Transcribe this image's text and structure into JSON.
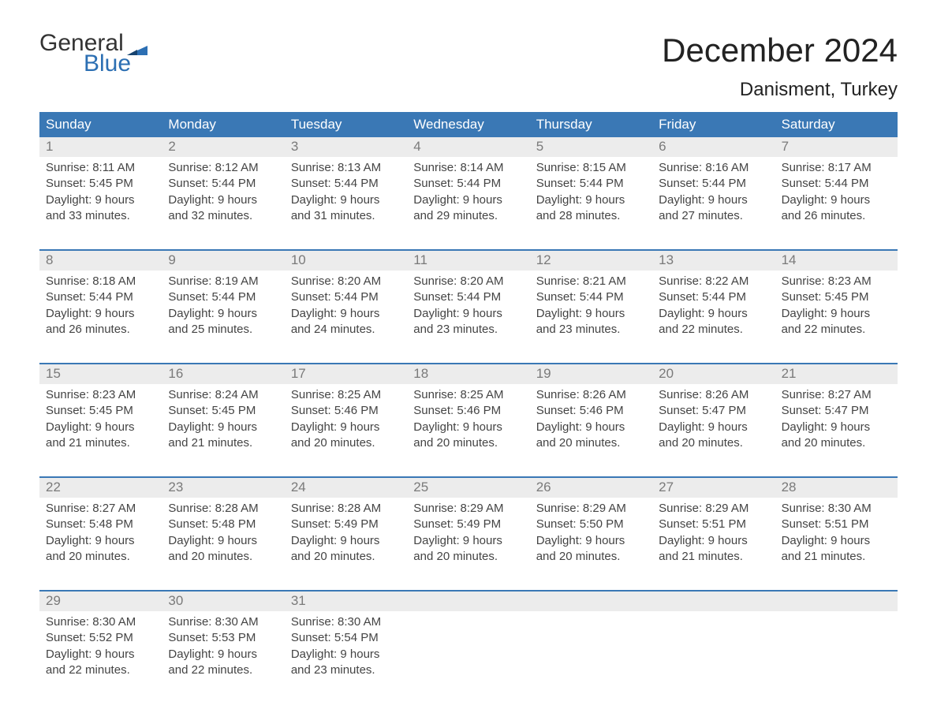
{
  "logo": {
    "general": "General",
    "blue": "Blue"
  },
  "title": "December 2024",
  "location": "Danisment, Turkey",
  "colors": {
    "header_bg": "#3a78b5",
    "header_text": "#ffffff",
    "daynum_bg": "#ececec",
    "daynum_text": "#7a7a7a",
    "body_text": "#444444",
    "logo_blue": "#2c6fb3",
    "border": "#3a78b5"
  },
  "weekdays": [
    "Sunday",
    "Monday",
    "Tuesday",
    "Wednesday",
    "Thursday",
    "Friday",
    "Saturday"
  ],
  "labels": {
    "sunrise": "Sunrise:",
    "sunset": "Sunset:",
    "daylight": "Daylight:"
  },
  "weeks": [
    [
      {
        "n": "1",
        "sunrise": "8:11 AM",
        "sunset": "5:45 PM",
        "daylight1": "9 hours",
        "daylight2": "and 33 minutes."
      },
      {
        "n": "2",
        "sunrise": "8:12 AM",
        "sunset": "5:44 PM",
        "daylight1": "9 hours",
        "daylight2": "and 32 minutes."
      },
      {
        "n": "3",
        "sunrise": "8:13 AM",
        "sunset": "5:44 PM",
        "daylight1": "9 hours",
        "daylight2": "and 31 minutes."
      },
      {
        "n": "4",
        "sunrise": "8:14 AM",
        "sunset": "5:44 PM",
        "daylight1": "9 hours",
        "daylight2": "and 29 minutes."
      },
      {
        "n": "5",
        "sunrise": "8:15 AM",
        "sunset": "5:44 PM",
        "daylight1": "9 hours",
        "daylight2": "and 28 minutes."
      },
      {
        "n": "6",
        "sunrise": "8:16 AM",
        "sunset": "5:44 PM",
        "daylight1": "9 hours",
        "daylight2": "and 27 minutes."
      },
      {
        "n": "7",
        "sunrise": "8:17 AM",
        "sunset": "5:44 PM",
        "daylight1": "9 hours",
        "daylight2": "and 26 minutes."
      }
    ],
    [
      {
        "n": "8",
        "sunrise": "8:18 AM",
        "sunset": "5:44 PM",
        "daylight1": "9 hours",
        "daylight2": "and 26 minutes."
      },
      {
        "n": "9",
        "sunrise": "8:19 AM",
        "sunset": "5:44 PM",
        "daylight1": "9 hours",
        "daylight2": "and 25 minutes."
      },
      {
        "n": "10",
        "sunrise": "8:20 AM",
        "sunset": "5:44 PM",
        "daylight1": "9 hours",
        "daylight2": "and 24 minutes."
      },
      {
        "n": "11",
        "sunrise": "8:20 AM",
        "sunset": "5:44 PM",
        "daylight1": "9 hours",
        "daylight2": "and 23 minutes."
      },
      {
        "n": "12",
        "sunrise": "8:21 AM",
        "sunset": "5:44 PM",
        "daylight1": "9 hours",
        "daylight2": "and 23 minutes."
      },
      {
        "n": "13",
        "sunrise": "8:22 AM",
        "sunset": "5:44 PM",
        "daylight1": "9 hours",
        "daylight2": "and 22 minutes."
      },
      {
        "n": "14",
        "sunrise": "8:23 AM",
        "sunset": "5:45 PM",
        "daylight1": "9 hours",
        "daylight2": "and 22 minutes."
      }
    ],
    [
      {
        "n": "15",
        "sunrise": "8:23 AM",
        "sunset": "5:45 PM",
        "daylight1": "9 hours",
        "daylight2": "and 21 minutes."
      },
      {
        "n": "16",
        "sunrise": "8:24 AM",
        "sunset": "5:45 PM",
        "daylight1": "9 hours",
        "daylight2": "and 21 minutes."
      },
      {
        "n": "17",
        "sunrise": "8:25 AM",
        "sunset": "5:46 PM",
        "daylight1": "9 hours",
        "daylight2": "and 20 minutes."
      },
      {
        "n": "18",
        "sunrise": "8:25 AM",
        "sunset": "5:46 PM",
        "daylight1": "9 hours",
        "daylight2": "and 20 minutes."
      },
      {
        "n": "19",
        "sunrise": "8:26 AM",
        "sunset": "5:46 PM",
        "daylight1": "9 hours",
        "daylight2": "and 20 minutes."
      },
      {
        "n": "20",
        "sunrise": "8:26 AM",
        "sunset": "5:47 PM",
        "daylight1": "9 hours",
        "daylight2": "and 20 minutes."
      },
      {
        "n": "21",
        "sunrise": "8:27 AM",
        "sunset": "5:47 PM",
        "daylight1": "9 hours",
        "daylight2": "and 20 minutes."
      }
    ],
    [
      {
        "n": "22",
        "sunrise": "8:27 AM",
        "sunset": "5:48 PM",
        "daylight1": "9 hours",
        "daylight2": "and 20 minutes."
      },
      {
        "n": "23",
        "sunrise": "8:28 AM",
        "sunset": "5:48 PM",
        "daylight1": "9 hours",
        "daylight2": "and 20 minutes."
      },
      {
        "n": "24",
        "sunrise": "8:28 AM",
        "sunset": "5:49 PM",
        "daylight1": "9 hours",
        "daylight2": "and 20 minutes."
      },
      {
        "n": "25",
        "sunrise": "8:29 AM",
        "sunset": "5:49 PM",
        "daylight1": "9 hours",
        "daylight2": "and 20 minutes."
      },
      {
        "n": "26",
        "sunrise": "8:29 AM",
        "sunset": "5:50 PM",
        "daylight1": "9 hours",
        "daylight2": "and 20 minutes."
      },
      {
        "n": "27",
        "sunrise": "8:29 AM",
        "sunset": "5:51 PM",
        "daylight1": "9 hours",
        "daylight2": "and 21 minutes."
      },
      {
        "n": "28",
        "sunrise": "8:30 AM",
        "sunset": "5:51 PM",
        "daylight1": "9 hours",
        "daylight2": "and 21 minutes."
      }
    ],
    [
      {
        "n": "29",
        "sunrise": "8:30 AM",
        "sunset": "5:52 PM",
        "daylight1": "9 hours",
        "daylight2": "and 22 minutes."
      },
      {
        "n": "30",
        "sunrise": "8:30 AM",
        "sunset": "5:53 PM",
        "daylight1": "9 hours",
        "daylight2": "and 22 minutes."
      },
      {
        "n": "31",
        "sunrise": "8:30 AM",
        "sunset": "5:54 PM",
        "daylight1": "9 hours",
        "daylight2": "and 23 minutes."
      },
      {
        "empty": true
      },
      {
        "empty": true
      },
      {
        "empty": true
      },
      {
        "empty": true
      }
    ]
  ]
}
